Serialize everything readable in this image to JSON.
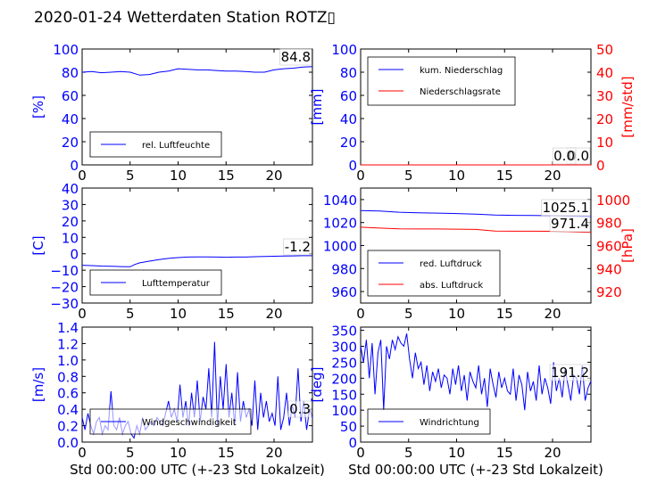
{
  "page_title": "2020-01-24 Wetterdaten Station ROTZ▯",
  "colors": {
    "blue": "#0000ff",
    "red": "#ff0000",
    "black": "#000000"
  },
  "chart_data": [
    {
      "type": "line",
      "xlabel": "",
      "ylabel": "[%]",
      "xlim": [
        0,
        24
      ],
      "xticks": [
        0,
        5,
        10,
        15,
        20
      ],
      "ylim": [
        0,
        100
      ],
      "yticks": [
        0,
        20,
        40,
        60,
        80,
        100
      ],
      "legend": "lower-left",
      "annotation": "84.8",
      "series": [
        {
          "name": "rel. Luftfeuchte",
          "color": "#0000ff",
          "x": [
            0,
            1,
            2,
            3,
            4,
            5,
            6,
            7,
            8,
            9,
            10,
            11,
            12,
            13,
            14,
            15,
            16,
            17,
            18,
            19,
            20,
            21,
            22,
            23,
            24
          ],
          "y": [
            80,
            80.5,
            79.5,
            80,
            80.5,
            80,
            77.5,
            78,
            80,
            81,
            83,
            82.5,
            82,
            82,
            81.5,
            81,
            81,
            80.5,
            80,
            80,
            82,
            83,
            83.5,
            84.5,
            84.8
          ]
        }
      ]
    },
    {
      "type": "line",
      "xlabel": "",
      "ylabel": "[mm]",
      "ylabel_right": "[mm/std]",
      "xlim": [
        0,
        24
      ],
      "xticks": [
        0,
        5,
        10,
        15,
        20
      ],
      "ylim": [
        0,
        100
      ],
      "yticks": [
        0,
        20,
        40,
        60,
        80,
        100
      ],
      "ylim_right": [
        0,
        50
      ],
      "yticks_right": [
        0,
        10,
        20,
        30,
        40,
        50
      ],
      "legend": "top-left",
      "annotation": "0.0",
      "annotation2": "0.0",
      "series": [
        {
          "name": "kum. Niederschlag",
          "color": "#0000ff",
          "axis": "left",
          "x": [
            0,
            24
          ],
          "y": [
            0,
            0
          ]
        },
        {
          "name": "Niederschlagsrate",
          "color": "#ff0000",
          "axis": "right",
          "x": [
            0,
            24
          ],
          "y": [
            0,
            0
          ]
        }
      ]
    },
    {
      "type": "line",
      "xlabel": "",
      "ylabel": "[C]",
      "xlim": [
        0,
        24
      ],
      "xticks": [
        0,
        5,
        10,
        15,
        20
      ],
      "ylim": [
        -30,
        40
      ],
      "yticks": [
        -30,
        -20,
        -10,
        0,
        10,
        20,
        30,
        40
      ],
      "legend": "lower-left",
      "annotation": "-1.2",
      "series": [
        {
          "name": "Lufttemperatur",
          "color": "#0000ff",
          "x": [
            0,
            1,
            2,
            3,
            4,
            5,
            5.5,
            6,
            7,
            8,
            9,
            10,
            11,
            12,
            13,
            14,
            15,
            16,
            17,
            18,
            19,
            20,
            21,
            22,
            23,
            24
          ],
          "y": [
            -7,
            -7.2,
            -7.5,
            -7.6,
            -7.8,
            -7.9,
            -6.5,
            -5.5,
            -4.5,
            -3.5,
            -2.8,
            -2.3,
            -2,
            -1.9,
            -1.9,
            -2,
            -2.1,
            -2,
            -2,
            -1.8,
            -1.6,
            -1.5,
            -1.4,
            -1.3,
            -1.2,
            -1.2
          ]
        }
      ]
    },
    {
      "type": "line",
      "xlabel": "",
      "ylabel": "",
      "ylabel_right": "[hPa]",
      "xlim": [
        0,
        24
      ],
      "xticks": [
        0,
        5,
        10,
        15,
        20
      ],
      "ylim": [
        950,
        1050
      ],
      "yticks": [
        960,
        980,
        1000,
        1020,
        1040
      ],
      "ylim_right": [
        910,
        1010
      ],
      "yticks_right": [
        920,
        940,
        960,
        980,
        1000
      ],
      "legend": "lower-left",
      "annotation": "1025.1",
      "annotation2": "971.4",
      "series": [
        {
          "name": "red. Luftdruck",
          "color": "#0000ff",
          "axis": "left",
          "x": [
            0,
            2,
            4,
            6,
            8,
            10,
            12,
            14,
            16,
            18,
            20,
            22,
            24
          ],
          "y": [
            1030.5,
            1030,
            1029,
            1028.5,
            1028.2,
            1027.8,
            1027.3,
            1026.5,
            1026.3,
            1026.2,
            1026,
            1025.6,
            1025.1
          ]
        },
        {
          "name": "abs. Luftdruck",
          "color": "#ff0000",
          "axis": "right",
          "x": [
            0,
            2,
            4,
            6,
            8,
            10,
            12,
            14,
            16,
            18,
            20,
            22,
            24
          ],
          "y": [
            976,
            975.2,
            974.5,
            974.4,
            974.4,
            974.3,
            974,
            972.6,
            972.5,
            972.5,
            972.4,
            971.9,
            971.4
          ]
        }
      ]
    },
    {
      "type": "line",
      "xlabel": "Std 00:00:00 UTC (+-23 Std Lokalzeit)",
      "ylabel": "[m/s]",
      "xlim": [
        0,
        24
      ],
      "xticks": [
        0,
        5,
        10,
        15,
        20
      ],
      "ylim": [
        0,
        1.4
      ],
      "yticks": [
        0.0,
        0.2,
        0.4,
        0.6,
        0.8,
        1.0,
        1.2,
        1.4
      ],
      "legend": "lower-left",
      "annotation": "0.3",
      "series": [
        {
          "name": "Windgeschwindigkeit",
          "color": "#0000ff",
          "x": [
            0,
            0.3,
            0.6,
            0.9,
            1.2,
            1.5,
            1.8,
            2.1,
            2.4,
            2.7,
            3.0,
            3.3,
            3.6,
            3.9,
            4.2,
            4.5,
            4.8,
            5.1,
            5.4,
            5.7,
            6.0,
            6.3,
            6.6,
            6.9,
            7.2,
            7.5,
            7.8,
            8.1,
            8.4,
            8.7,
            9.0,
            9.3,
            9.6,
            9.9,
            10.2,
            10.5,
            10.8,
            11.1,
            11.4,
            11.7,
            12.0,
            12.3,
            12.6,
            12.9,
            13.2,
            13.5,
            13.8,
            14.1,
            14.4,
            14.7,
            15.0,
            15.3,
            15.6,
            15.9,
            16.2,
            16.5,
            16.8,
            17.1,
            17.4,
            17.7,
            18.0,
            18.3,
            18.6,
            18.9,
            19.2,
            19.5,
            19.8,
            20.1,
            20.4,
            20.7,
            21.0,
            21.3,
            21.6,
            21.9,
            22.2,
            22.5,
            22.8,
            23.1,
            23.4,
            23.7,
            24.0
          ],
          "y": [
            0.3,
            0.15,
            0.35,
            0.2,
            0.1,
            0.25,
            0.3,
            0.1,
            0.2,
            0.15,
            0.62,
            0.2,
            0.15,
            0.3,
            0.1,
            0.2,
            0.25,
            0.1,
            0.05,
            0.2,
            0.1,
            0.3,
            0.15,
            0.2,
            0.25,
            0.2,
            0.3,
            0.25,
            0.2,
            0.35,
            0.5,
            0.3,
            0.4,
            0.25,
            0.7,
            0.3,
            0.5,
            0.2,
            0.6,
            0.3,
            0.75,
            0.25,
            0.55,
            0.4,
            0.9,
            0.3,
            1.22,
            0.2,
            0.8,
            0.4,
            0.95,
            0.3,
            0.6,
            0.2,
            0.85,
            0.25,
            0.5,
            0.3,
            0.4,
            0.2,
            0.75,
            0.15,
            0.6,
            0.3,
            0.5,
            0.25,
            0.35,
            0.2,
            0.8,
            0.15,
            0.3,
            0.6,
            0.2,
            0.45,
            0.3,
            0.9,
            0.25,
            0.5,
            0.15,
            0.4,
            0.3
          ]
        }
      ]
    },
    {
      "type": "line",
      "xlabel": "Std 00:00:00 UTC (+-23 Std Lokalzeit)",
      "ylabel": "[deg]",
      "xlim": [
        0,
        24
      ],
      "xticks": [
        0,
        5,
        10,
        15,
        20
      ],
      "ylim": [
        0,
        360
      ],
      "yticks": [
        0,
        50,
        100,
        150,
        200,
        250,
        300,
        350
      ],
      "legend": "lower-left",
      "annotation": "191.2",
      "series": [
        {
          "name": "Windrichtung",
          "color": "#0000ff",
          "x": [
            0,
            0.3,
            0.6,
            0.9,
            1.2,
            1.5,
            1.8,
            2.1,
            2.4,
            2.7,
            3.0,
            3.3,
            3.6,
            3.9,
            4.2,
            4.5,
            4.8,
            5.1,
            5.4,
            5.7,
            6.0,
            6.3,
            6.6,
            6.9,
            7.2,
            7.5,
            7.8,
            8.1,
            8.4,
            8.7,
            9.0,
            9.3,
            9.6,
            9.9,
            10.2,
            10.5,
            10.8,
            11.1,
            11.4,
            11.7,
            12.0,
            12.3,
            12.6,
            12.9,
            13.2,
            13.5,
            13.8,
            14.1,
            14.4,
            14.7,
            15.0,
            15.3,
            15.6,
            15.9,
            16.2,
            16.5,
            16.8,
            17.1,
            17.4,
            17.7,
            18.0,
            18.3,
            18.6,
            18.9,
            19.2,
            19.5,
            19.8,
            20.1,
            20.4,
            20.7,
            21.0,
            21.3,
            21.6,
            21.9,
            22.2,
            22.5,
            22.8,
            23.1,
            23.4,
            23.7,
            24.0
          ],
          "y": [
            300,
            250,
            320,
            200,
            310,
            150,
            280,
            320,
            100,
            300,
            260,
            320,
            290,
            330,
            310,
            300,
            340,
            260,
            200,
            280,
            230,
            250,
            180,
            240,
            160,
            220,
            190,
            230,
            170,
            210,
            200,
            150,
            230,
            180,
            240,
            160,
            210,
            130,
            220,
            190,
            170,
            240,
            150,
            200,
            110,
            230,
            180,
            140,
            220,
            170,
            200,
            160,
            150,
            230,
            130,
            210,
            180,
            100,
            220,
            160,
            190,
            130,
            240,
            150,
            200,
            170,
            120,
            250,
            160,
            200,
            140,
            230,
            180,
            130,
            210,
            200,
            150,
            240,
            130,
            170,
            191.2
          ]
        }
      ]
    }
  ]
}
